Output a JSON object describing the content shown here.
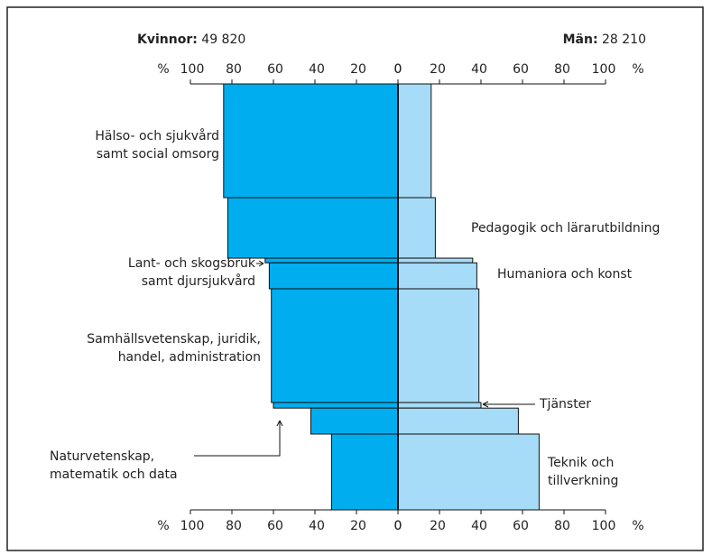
{
  "chart_data": {
    "type": "butterfly",
    "women_title": "Kvinnor:",
    "women_total": "49 820",
    "men_title": "Män:",
    "men_total": "28 210",
    "axis_unit": "%",
    "categories": [
      [
        "Hälso- och sjukvård",
        "samt social omsorg"
      ],
      [
        "Pedagogik och lärarutbildning"
      ],
      [
        "Lant- och skogsbruk",
        "samt djursjukvård"
      ],
      [
        "Humaniora och konst"
      ],
      [
        "Samhällsvetenskap, juridik,",
        "handel, administration"
      ],
      [
        "Tjänster"
      ],
      [
        "Naturvetenskap,",
        "matematik och data"
      ],
      [
        "Teknik och",
        "tillverkning"
      ]
    ],
    "share": [
      26.7,
      14.2,
      1.1,
      6.1,
      26.7,
      1.3,
      6.1,
      17.8
    ],
    "series": [
      {
        "name": "Kvinnor",
        "color": "#00aeef",
        "values": [
          84,
          82,
          64,
          62,
          61,
          60,
          42,
          32
        ]
      },
      {
        "name": "Män",
        "color": "#a6dcf7",
        "values": [
          16,
          18,
          36,
          38,
          39,
          40,
          58,
          68
        ]
      }
    ],
    "xlim": [
      0,
      100
    ],
    "xticks": [
      0,
      20,
      40,
      60,
      80,
      100
    ]
  }
}
